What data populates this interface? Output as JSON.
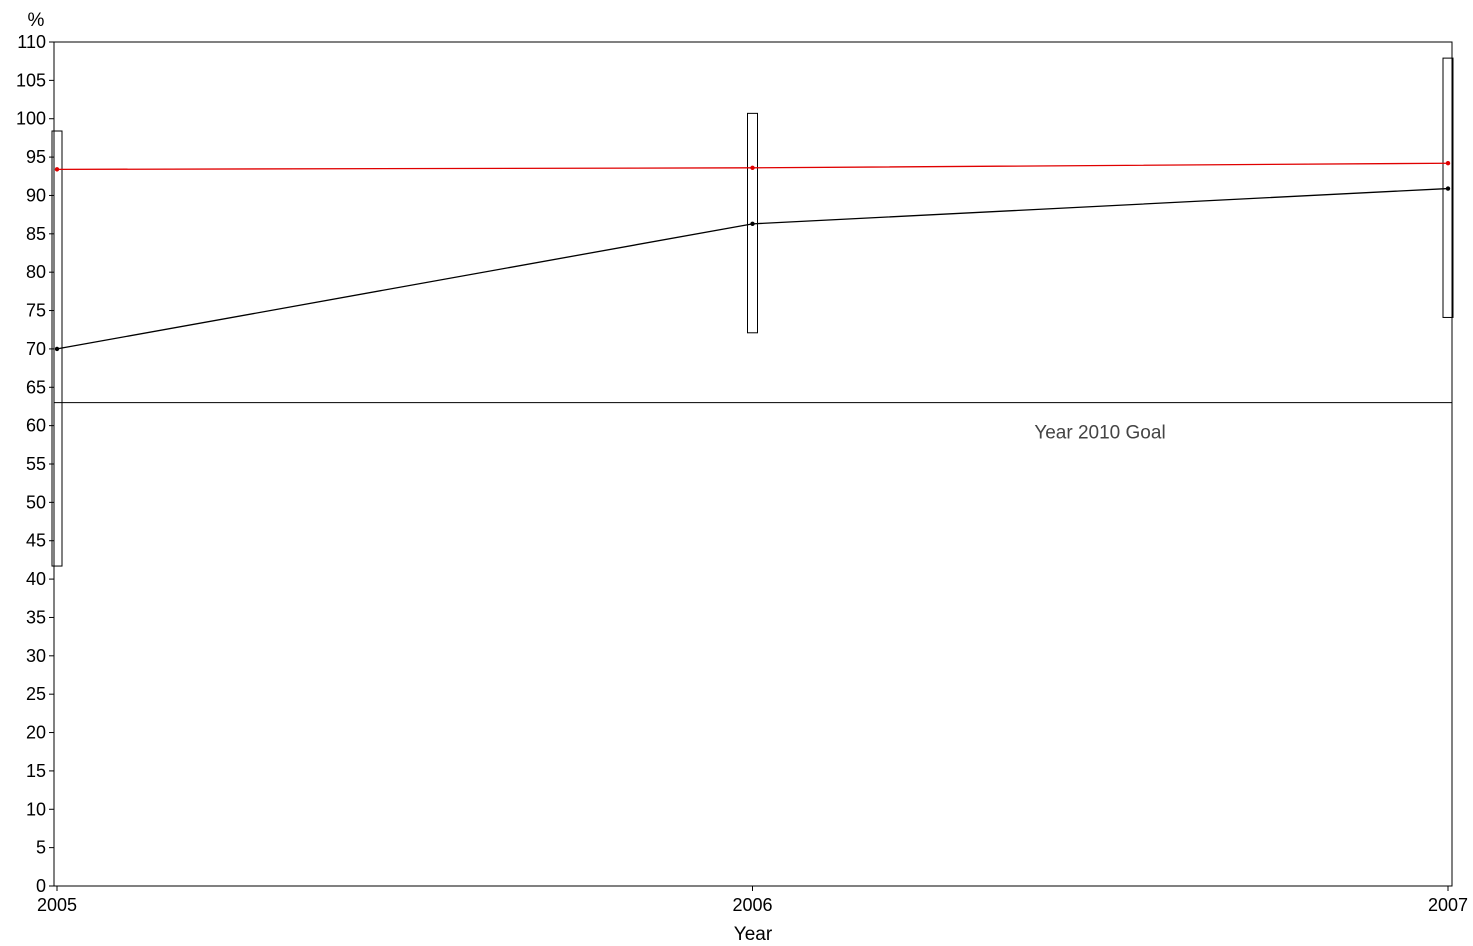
{
  "chart_data": {
    "type": "line",
    "title": "",
    "xlabel": "Year",
    "ylabel": "%",
    "x": [
      2005,
      2006,
      2007
    ],
    "x_tick_labels": [
      "2005",
      "2006",
      "2007"
    ],
    "xlim": [
      2005,
      2007
    ],
    "ylim": [
      0,
      110
    ],
    "y_ticks": [
      0,
      5,
      10,
      15,
      20,
      25,
      30,
      35,
      40,
      45,
      50,
      55,
      60,
      65,
      70,
      75,
      80,
      85,
      90,
      95,
      100,
      105,
      110
    ],
    "grid": false,
    "legend": "none",
    "series": [
      {
        "color": "#e00000",
        "values": [
          93.4,
          93.6,
          94.2
        ]
      },
      {
        "color": "#000000",
        "values": [
          70.0,
          86.3,
          90.9
        ],
        "interval_low": [
          41.7,
          72.1,
          74.1
        ],
        "interval_high": [
          98.4,
          100.7,
          107.9
        ]
      }
    ],
    "reference_lines": [
      {
        "y": 63,
        "label": "Year 2010 Goal",
        "color": "#000000"
      }
    ]
  }
}
